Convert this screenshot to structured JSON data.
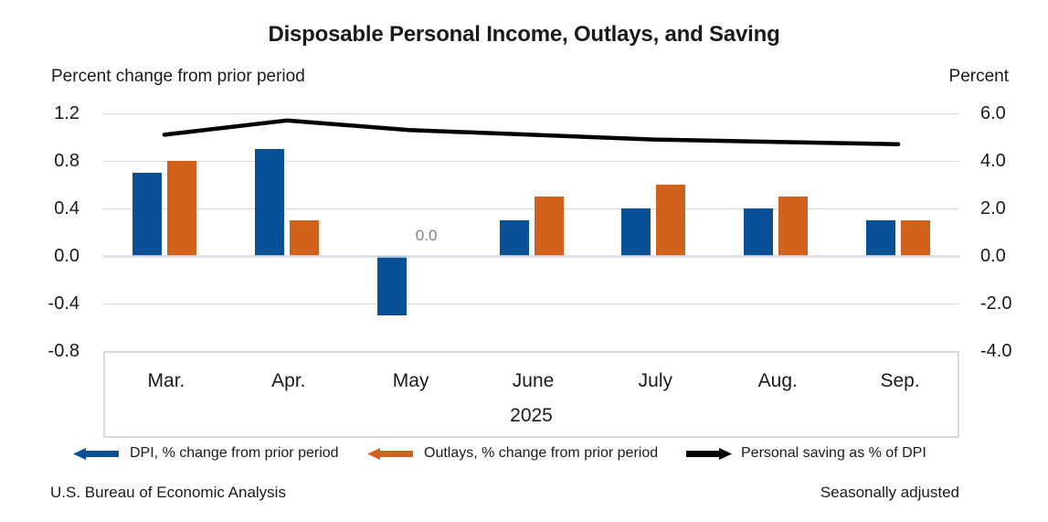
{
  "chart_data": {
    "type": "bar+line",
    "title": "Disposable Personal Income, Outlays, and Saving",
    "categories": [
      "Mar.",
      "Apr.",
      "May",
      "June",
      "July",
      "Aug.",
      "Sep."
    ],
    "year": "2025",
    "axes": {
      "left": {
        "title": "Percent change from prior period",
        "ticks": [
          "1.2",
          "0.8",
          "0.4",
          "0.0",
          "-0.4",
          "-0.8"
        ],
        "range": [
          -0.8,
          1.2
        ],
        "grid": true
      },
      "right": {
        "title": "Percent",
        "ticks": [
          "6.0",
          "4.0",
          "2.0",
          "0.0",
          "-2.0",
          "-4.0"
        ],
        "range": [
          -4.0,
          6.0
        ]
      }
    },
    "series": [
      {
        "name": "DPI, % change from prior period",
        "type": "bar",
        "axis": "left",
        "color": "#0A5096",
        "values": [
          0.7,
          0.9,
          -0.5,
          0.3,
          0.4,
          0.4,
          0.3
        ]
      },
      {
        "name": "Outlays, % change from prior period",
        "type": "bar",
        "axis": "left",
        "color": "#D2611C",
        "values": [
          0.8,
          0.3,
          0.0,
          0.5,
          0.6,
          0.5,
          0.3
        ]
      },
      {
        "name": "Personal saving as % of DPI",
        "type": "line",
        "axis": "right",
        "color": "#000000",
        "values": [
          5.1,
          5.7,
          5.3,
          5.1,
          4.9,
          4.8,
          4.7
        ]
      }
    ],
    "annotations": [
      {
        "text": "0.0",
        "series_index": 1,
        "category_index": 2,
        "color": "#808080"
      }
    ],
    "legend_position": "bottom",
    "grid_color": "#D9D9D9"
  },
  "footer": {
    "source": "U.S. Bureau of Economic Analysis",
    "note": "Seasonally adjusted"
  }
}
